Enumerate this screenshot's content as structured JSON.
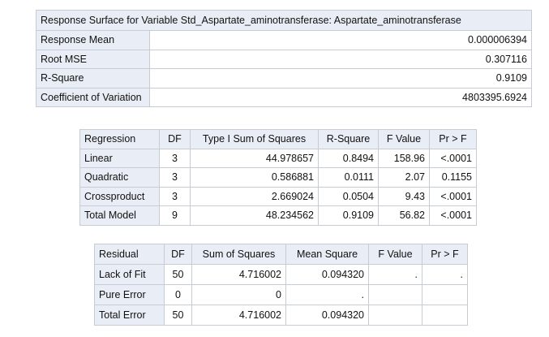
{
  "summary": {
    "title": "Response Surface for Variable Std_Aspartate_aminotransferase: Aspartate_aminotransferase",
    "rows": [
      {
        "label": "Response Mean",
        "value": "0.000006394"
      },
      {
        "label": "Root MSE",
        "value": "0.307116"
      },
      {
        "label": "R-Square",
        "value": "0.9109"
      },
      {
        "label": "Coefficient of Variation",
        "value": "4803395.6924"
      }
    ]
  },
  "regression": {
    "headers": [
      "Regression",
      "DF",
      "Type I Sum of Squares",
      "R-Square",
      "F Value",
      "Pr > F"
    ],
    "rows": [
      [
        "Linear",
        "3",
        "44.978657",
        "0.8494",
        "158.96",
        "<.0001"
      ],
      [
        "Quadratic",
        "3",
        "0.586881",
        "0.0111",
        "2.07",
        "0.1155"
      ],
      [
        "Crossproduct",
        "3",
        "2.669024",
        "0.0504",
        "9.43",
        "<.0001"
      ],
      [
        "Total Model",
        "9",
        "48.234562",
        "0.9109",
        "56.82",
        "<.0001"
      ]
    ]
  },
  "residual": {
    "headers": [
      "Residual",
      "DF",
      "Sum of Squares",
      "Mean Square",
      "F Value",
      "Pr > F"
    ],
    "rows": [
      [
        "Lack of Fit",
        "50",
        "4.716002",
        "0.094320",
        ".",
        "."
      ],
      [
        "Pure Error",
        "0",
        "0",
        ".",
        "",
        ""
      ],
      [
        "Total Error",
        "50",
        "4.716002",
        "0.094320",
        "",
        ""
      ]
    ]
  }
}
